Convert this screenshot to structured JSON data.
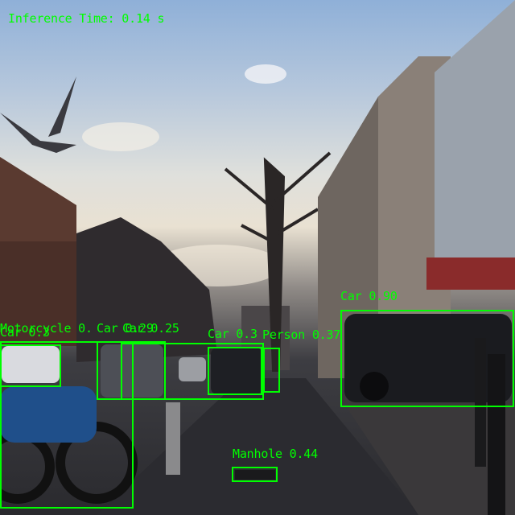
{
  "overlay": {
    "inference_text": "Inference Time: 0.14 s",
    "color": "#00ff00"
  },
  "detections": [
    {
      "label": "Car 0.90"
    },
    {
      "label": "Person 0.37"
    },
    {
      "label": "Car 0.3"
    },
    {
      "label": "Car 0.25"
    },
    {
      "label": "Car 0.29"
    },
    {
      "label": "Motorcycle 0."
    },
    {
      "label": "Car 0.3"
    },
    {
      "label": "Manhole 0.44"
    }
  ]
}
